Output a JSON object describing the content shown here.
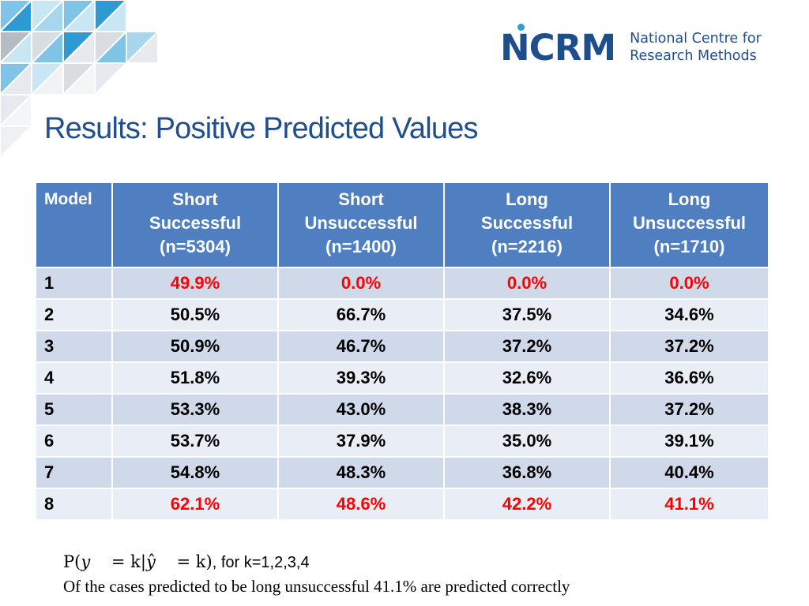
{
  "logo": {
    "mark": "NCRM",
    "line1": "National Centre for",
    "line2": "Research Methods"
  },
  "title": "Results: Positive Predicted Values",
  "table": {
    "headers": [
      {
        "lines": [
          "Model"
        ]
      },
      {
        "lines": [
          "Short",
          "Successful",
          "(n=5304)"
        ]
      },
      {
        "lines": [
          "Short",
          "Unsuccessful",
          "(n=1400)"
        ]
      },
      {
        "lines": [
          "Long",
          "Successful",
          "(n=2216)"
        ]
      },
      {
        "lines": [
          "Long",
          "Unsuccessful",
          "(n=1710)"
        ]
      }
    ],
    "rows": [
      {
        "model": "1",
        "values": [
          "49.9%",
          "0.0%",
          "0.0%",
          "0.0%"
        ],
        "highlight": true
      },
      {
        "model": "2",
        "values": [
          "50.5%",
          "66.7%",
          "37.5%",
          "34.6%"
        ],
        "highlight": false
      },
      {
        "model": "3",
        "values": [
          "50.9%",
          "46.7%",
          "37.2%",
          "37.2%"
        ],
        "highlight": false
      },
      {
        "model": "4",
        "values": [
          "51.8%",
          "39.3%",
          "32.6%",
          "36.6%"
        ],
        "highlight": false
      },
      {
        "model": "5",
        "values": [
          "53.3%",
          "43.0%",
          "38.3%",
          "37.2%"
        ],
        "highlight": false
      },
      {
        "model": "6",
        "values": [
          "53.7%",
          "37.9%",
          "35.0%",
          "39.1%"
        ],
        "highlight": false
      },
      {
        "model": "7",
        "values": [
          "54.8%",
          "48.3%",
          "36.8%",
          "40.4%"
        ],
        "highlight": false
      },
      {
        "model": "8",
        "values": [
          "62.1%",
          "48.6%",
          "42.2%",
          "41.1%"
        ],
        "highlight": true
      }
    ],
    "highlight_color": "#ff0000",
    "header_color": "#4f7fc0"
  },
  "footnote": {
    "formula": "P(𝑦    = k|𝑦̂    = k)",
    "formula_suffix": ", for k=1,2,3,4",
    "line2": "Of the cases predicted to be long unsuccessful 41.1% are  predicted correctly"
  }
}
